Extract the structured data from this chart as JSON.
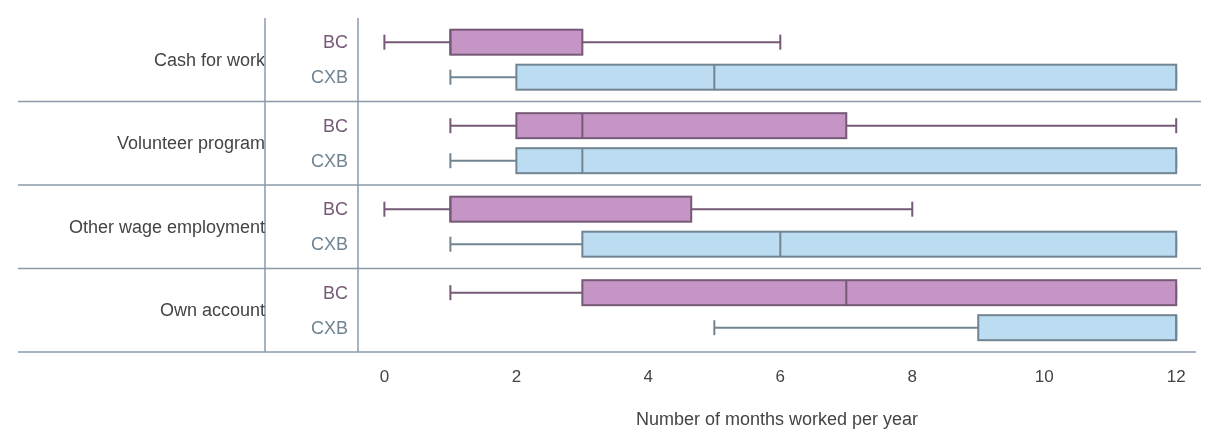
{
  "chart_data": {
    "type": "box",
    "orientation": "horizontal",
    "xlabel": "Number of months worked per year",
    "categories": [
      "Cash for work",
      "Volunteer program",
      "Other wage employment",
      "Own account"
    ],
    "series": [
      {
        "name": "BC",
        "color": "#c495c5",
        "boxes": [
          {
            "low": 0,
            "q1": 1,
            "median": 1,
            "q3": 3,
            "high": 6
          },
          {
            "low": 1,
            "q1": 2,
            "median": 3,
            "q3": 7,
            "high": 12
          },
          {
            "low": 0,
            "q1": 1,
            "median": 1,
            "q3": 4.65,
            "high": 8
          },
          {
            "low": 1,
            "q1": 3,
            "median": 7,
            "q3": 12,
            "high": 12
          }
        ]
      },
      {
        "name": "CXB",
        "color": "#bcdcf2",
        "boxes": [
          {
            "low": 1,
            "q1": 2,
            "median": 5,
            "q3": 12,
            "high": 12
          },
          {
            "low": 1,
            "q1": 2,
            "median": 3,
            "q3": 12,
            "high": 12
          },
          {
            "low": 1,
            "q1": 3,
            "median": 6,
            "q3": 12,
            "high": 12
          },
          {
            "low": 5,
            "q1": 9,
            "median": 12,
            "q3": 12,
            "high": 12
          }
        ]
      }
    ],
    "xlim": [
      -0.4,
      12.3
    ],
    "xticks": [
      0,
      2,
      4,
      6,
      8,
      10,
      12
    ],
    "grid": false
  }
}
